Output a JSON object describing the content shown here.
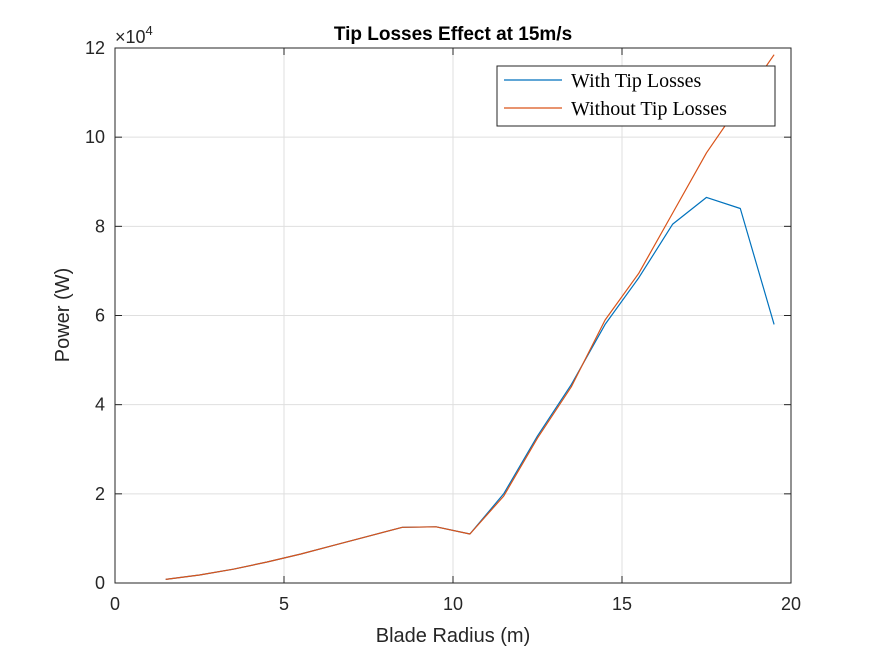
{
  "chart_data": {
    "type": "line",
    "title": "Tip Losses Effect at 15m/s",
    "xlabel": "Blade Radius (m)",
    "ylabel": "Power (W)",
    "xlim": [
      0,
      20
    ],
    "ylim": [
      0,
      12
    ],
    "y_multiplier_base": "×10",
    "y_multiplier_exp": "4",
    "xticks": [
      0,
      5,
      10,
      15,
      20
    ],
    "yticks": [
      0,
      2,
      4,
      6,
      8,
      10,
      12
    ],
    "xtick_labels": [
      "0",
      "5",
      "10",
      "15",
      "20"
    ],
    "ytick_labels": [
      "0",
      "2",
      "4",
      "6",
      "8",
      "10",
      "12"
    ],
    "grid": true,
    "legend_position": "top-right",
    "series": [
      {
        "name": "With Tip Losses",
        "color": "#0072BD",
        "x": [
          1.5,
          2.5,
          3.5,
          4.5,
          5.5,
          6.5,
          7.5,
          8.5,
          9.5,
          10.5,
          11.5,
          12.5,
          13.5,
          14.5,
          15.5,
          16.5,
          17.5,
          18.5,
          19.5
        ],
        "y": [
          0.08,
          0.18,
          0.31,
          0.47,
          0.65,
          0.85,
          1.05,
          1.25,
          1.26,
          1.1,
          2.0,
          3.3,
          4.45,
          5.8,
          6.85,
          8.05,
          8.65,
          8.4,
          5.8
        ]
      },
      {
        "name": "Without Tip Losses",
        "color": "#D95319",
        "x": [
          1.5,
          2.5,
          3.5,
          4.5,
          5.5,
          6.5,
          7.5,
          8.5,
          9.5,
          10.5,
          11.5,
          12.5,
          13.5,
          14.5,
          15.5,
          16.5,
          17.5,
          18.5,
          19.5
        ],
        "y": [
          0.08,
          0.18,
          0.31,
          0.47,
          0.65,
          0.85,
          1.05,
          1.25,
          1.26,
          1.1,
          1.95,
          3.25,
          4.4,
          5.9,
          6.95,
          8.3,
          9.65,
          10.75,
          11.85
        ]
      }
    ]
  }
}
